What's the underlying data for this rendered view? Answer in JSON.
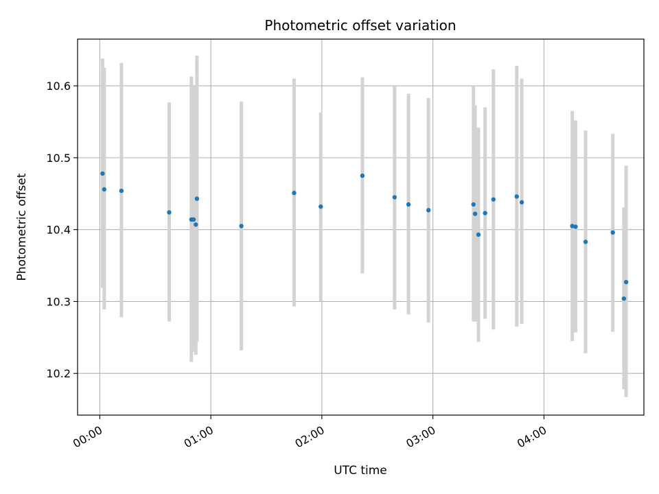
{
  "chart_data": {
    "type": "scatter",
    "title": "Photometric offset variation",
    "xlabel": "UTC time",
    "ylabel": "Photometric offset",
    "x_unit": "hours UTC",
    "xlim": [
      -0.2,
      4.9
    ],
    "ylim": [
      10.142,
      10.665
    ],
    "x_ticks": [
      {
        "value": 0,
        "label": "00:00"
      },
      {
        "value": 1,
        "label": "01:00"
      },
      {
        "value": 2,
        "label": "02:00"
      },
      {
        "value": 3,
        "label": "03:00"
      },
      {
        "value": 4,
        "label": "04:00"
      }
    ],
    "y_ticks": [
      {
        "value": 10.2,
        "label": "10.2"
      },
      {
        "value": 10.3,
        "label": "10.3"
      },
      {
        "value": 10.4,
        "label": "10.4"
      },
      {
        "value": 10.5,
        "label": "10.5"
      },
      {
        "value": 10.6,
        "label": "10.6"
      }
    ],
    "grid": true,
    "point_color": "#1f77b4",
    "errorbar_color": "#d3d3d3",
    "points": [
      {
        "x": 0.025,
        "y": 10.478,
        "lo": 10.319,
        "hi": 10.638
      },
      {
        "x": 0.04,
        "y": 10.456,
        "lo": 10.289,
        "hi": 10.625
      },
      {
        "x": 0.195,
        "y": 10.454,
        "lo": 10.278,
        "hi": 10.632
      },
      {
        "x": 0.625,
        "y": 10.424,
        "lo": 10.272,
        "hi": 10.577
      },
      {
        "x": 0.825,
        "y": 10.414,
        "lo": 10.216,
        "hi": 10.613
      },
      {
        "x": 0.845,
        "y": 10.414,
        "lo": 10.23,
        "hi": 10.6
      },
      {
        "x": 0.865,
        "y": 10.407,
        "lo": 10.226,
        "hi": 10.597
      },
      {
        "x": 0.875,
        "y": 10.443,
        "lo": 10.244,
        "hi": 10.642
      },
      {
        "x": 1.275,
        "y": 10.405,
        "lo": 10.232,
        "hi": 10.578
      },
      {
        "x": 1.75,
        "y": 10.451,
        "lo": 10.293,
        "hi": 10.61
      },
      {
        "x": 1.99,
        "y": 10.432,
        "lo": 10.3,
        "hi": 10.563
      },
      {
        "x": 2.365,
        "y": 10.475,
        "lo": 10.339,
        "hi": 10.612
      },
      {
        "x": 2.655,
        "y": 10.445,
        "lo": 10.289,
        "hi": 10.6
      },
      {
        "x": 2.78,
        "y": 10.435,
        "lo": 10.282,
        "hi": 10.589
      },
      {
        "x": 2.96,
        "y": 10.427,
        "lo": 10.271,
        "hi": 10.583
      },
      {
        "x": 3.365,
        "y": 10.435,
        "lo": 10.272,
        "hi": 10.6
      },
      {
        "x": 3.38,
        "y": 10.422,
        "lo": 10.272,
        "hi": 10.573
      },
      {
        "x": 3.41,
        "y": 10.393,
        "lo": 10.244,
        "hi": 10.542
      },
      {
        "x": 3.47,
        "y": 10.423,
        "lo": 10.276,
        "hi": 10.57
      },
      {
        "x": 3.545,
        "y": 10.442,
        "lo": 10.261,
        "hi": 10.623
      },
      {
        "x": 3.755,
        "y": 10.446,
        "lo": 10.265,
        "hi": 10.628
      },
      {
        "x": 3.8,
        "y": 10.438,
        "lo": 10.269,
        "hi": 10.61
      },
      {
        "x": 4.255,
        "y": 10.405,
        "lo": 10.245,
        "hi": 10.565
      },
      {
        "x": 4.285,
        "y": 10.404,
        "lo": 10.257,
        "hi": 10.552
      },
      {
        "x": 4.375,
        "y": 10.383,
        "lo": 10.228,
        "hi": 10.538
      },
      {
        "x": 4.62,
        "y": 10.396,
        "lo": 10.258,
        "hi": 10.533
      },
      {
        "x": 4.72,
        "y": 10.304,
        "lo": 10.178,
        "hi": 10.431
      },
      {
        "x": 4.74,
        "y": 10.327,
        "lo": 10.167,
        "hi": 10.489
      }
    ]
  }
}
